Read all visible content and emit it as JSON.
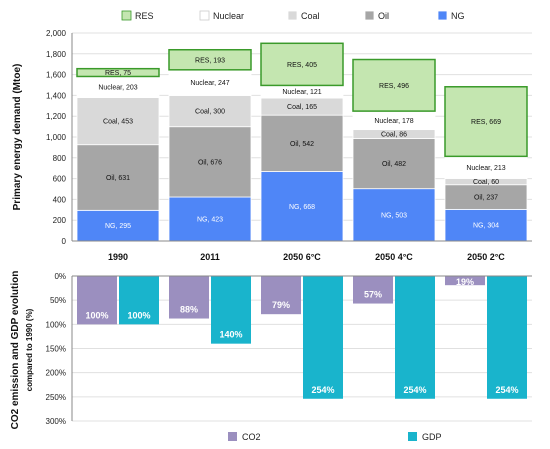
{
  "chart_data": [
    {
      "type": "bar",
      "stacked": true,
      "categories": [
        "1990",
        "2011",
        "2050 6°C",
        "2050 4°C",
        "2050 2°C"
      ],
      "ylabel": "Primary energy demand (Mtoe)",
      "ylim": [
        0,
        2000
      ],
      "yticks": [
        "0",
        "200",
        "400",
        "600",
        "800",
        "1,000",
        "1,200",
        "1,400",
        "1,600",
        "1,800",
        "2,000"
      ],
      "legend_position": "top",
      "series": [
        {
          "name": "NG",
          "color": "#4f86f7",
          "values": [
            295,
            423,
            668,
            503,
            304
          ],
          "labels": [
            "NG, 295",
            "NG, 423",
            "NG, 668",
            "NG, 503",
            "NG, 304"
          ]
        },
        {
          "name": "Oil",
          "color": "#a6a6a6",
          "values": [
            631,
            676,
            542,
            482,
            237
          ],
          "labels": [
            "Oil, 631",
            "Oil, 676",
            "Oil, 542",
            "Oil, 482",
            "Oil, 237"
          ]
        },
        {
          "name": "Coal",
          "color": "#d9d9d9",
          "values": [
            453,
            300,
            165,
            86,
            60
          ],
          "labels": [
            "Coal, 453",
            "Coal, 300",
            "Coal, 165",
            "Coal, 86",
            "Coal, 60"
          ]
        },
        {
          "name": "Nuclear",
          "color": "#ffffff",
          "values": [
            203,
            247,
            121,
            178,
            213
          ],
          "labels": [
            "Nuclear, 203",
            "Nuclear, 247",
            "Nuclear, 121",
            "Nuclear, 178",
            "Nuclear, 213"
          ]
        },
        {
          "name": "RES",
          "color": "#c4e6b0",
          "values": [
            75,
            193,
            405,
            496,
            669
          ],
          "labels": [
            "RES, 75",
            "RES, 193",
            "RES, 405",
            "RES, 496",
            "RES, 669"
          ]
        }
      ]
    },
    {
      "type": "bar",
      "categories": [
        "1990",
        "2011",
        "2050 6°C",
        "2050 4°C",
        "2050 2°C"
      ],
      "ylabel": "CO2 emission and GDP evolution",
      "ylabel2": "compared to 1990 (%)",
      "ylim": [
        0,
        300
      ],
      "inverted": true,
      "yticks": [
        "0%",
        "50%",
        "100%",
        "150%",
        "200%",
        "250%",
        "300%"
      ],
      "legend_position": "bottom",
      "series": [
        {
          "name": "CO2",
          "color": "#9b8fbf",
          "values": [
            100,
            88,
            79,
            57,
            19
          ],
          "labels": [
            "100%",
            "88%",
            "79%",
            "57%",
            "19%"
          ]
        },
        {
          "name": "GDP",
          "color": "#19b4cc",
          "values": [
            100,
            140,
            254,
            254,
            254
          ],
          "labels": [
            "100%",
            "140%",
            "254%",
            "254%",
            "254%"
          ]
        }
      ]
    }
  ]
}
